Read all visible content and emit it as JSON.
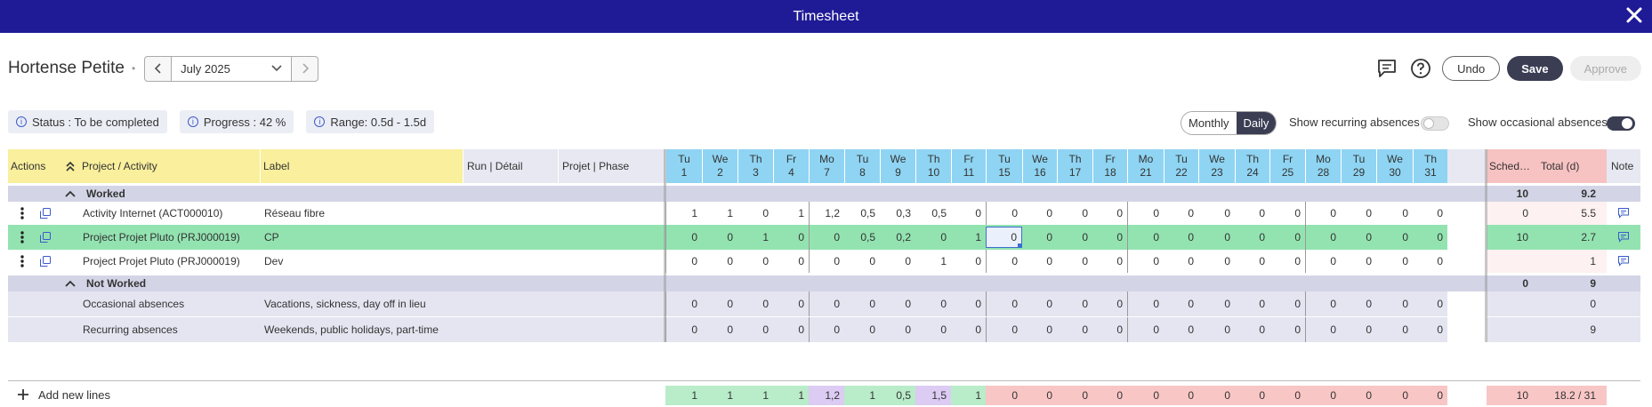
{
  "window": {
    "title": "Timesheet",
    "close_icon": "close-icon"
  },
  "header": {
    "person": "Hortense Petite",
    "month": "July 2025",
    "undo": "Undo",
    "save": "Save",
    "approve": "Approve"
  },
  "info": {
    "status": "Status : To be completed",
    "progress": "Progress : 42 %",
    "range": "Range: 0.5d - 1.5d"
  },
  "view": {
    "monthly": "Monthly",
    "daily": "Daily",
    "selected": "Daily",
    "recurring_label": "Show recurring absences",
    "recurring_on": false,
    "occasional_label": "Show occasional absences",
    "occasional_on": true
  },
  "columns": {
    "actions": "Actions",
    "project": "Project / Activity",
    "label": "Label",
    "run": "Run | Détail",
    "phase": "Projet | Phase",
    "scheduled": "Sched…",
    "total": "Total (d)",
    "note": "Note"
  },
  "days": [
    {
      "d": "Tu",
      "n": "1"
    },
    {
      "d": "We",
      "n": "2"
    },
    {
      "d": "Th",
      "n": "3"
    },
    {
      "d": "Fr",
      "n": "4"
    },
    {
      "d": "Mo",
      "n": "7"
    },
    {
      "d": "Tu",
      "n": "8"
    },
    {
      "d": "We",
      "n": "9"
    },
    {
      "d": "Th",
      "n": "10"
    },
    {
      "d": "Fr",
      "n": "11"
    },
    {
      "d": "Tu",
      "n": "15"
    },
    {
      "d": "We",
      "n": "16"
    },
    {
      "d": "Th",
      "n": "17"
    },
    {
      "d": "Fr",
      "n": "18"
    },
    {
      "d": "Mo",
      "n": "21"
    },
    {
      "d": "Tu",
      "n": "22"
    },
    {
      "d": "We",
      "n": "23"
    },
    {
      "d": "Th",
      "n": "24"
    },
    {
      "d": "Fr",
      "n": "25"
    },
    {
      "d": "Mo",
      "n": "28"
    },
    {
      "d": "Tu",
      "n": "29"
    },
    {
      "d": "We",
      "n": "30"
    },
    {
      "d": "Th",
      "n": "31"
    }
  ],
  "groups": [
    {
      "title": "Worked",
      "scheduled": "10",
      "total": "9.2",
      "rows": [
        {
          "project": "Activity Internet (ACT000010)",
          "label": "Réseau fibre",
          "values": [
            "1",
            "1",
            "0",
            "1",
            "1,2",
            "0,5",
            "0,3",
            "0,5",
            "0",
            "0",
            "0",
            "0",
            "0",
            "0",
            "0",
            "0",
            "0",
            "0",
            "0",
            "0",
            "0",
            "0"
          ],
          "scheduled": "0",
          "total": "5.5",
          "note": true,
          "highlight": false
        },
        {
          "project": "Project Projet Pluto (PRJ000019)",
          "label": "CP",
          "values": [
            "0",
            "0",
            "1",
            "0",
            "0",
            "0,5",
            "0,2",
            "0",
            "1",
            "0",
            "0",
            "0",
            "0",
            "0",
            "0",
            "0",
            "0",
            "0",
            "0",
            "0",
            "0",
            "0"
          ],
          "scheduled": "10",
          "total": "2.7",
          "note": true,
          "highlight": true
        },
        {
          "project": "Project Projet Pluto (PRJ000019)",
          "label": "Dev",
          "values": [
            "0",
            "0",
            "0",
            "0",
            "0",
            "0",
            "0",
            "1",
            "0",
            "0",
            "0",
            "0",
            "0",
            "0",
            "0",
            "0",
            "0",
            "0",
            "0",
            "0",
            "0",
            "0"
          ],
          "scheduled": "",
          "total": "1",
          "note": true,
          "highlight": false
        }
      ]
    },
    {
      "title": "Not Worked",
      "scheduled": "0",
      "total": "9",
      "rows": [
        {
          "project": "Occasional absences",
          "label": "Vacations, sickness, day off in lieu",
          "values": [
            "0",
            "0",
            "0",
            "0",
            "0",
            "0",
            "0",
            "0",
            "0",
            "0",
            "0",
            "0",
            "0",
            "0",
            "0",
            "0",
            "0",
            "0",
            "0",
            "0",
            "0",
            "0"
          ],
          "scheduled": "",
          "total": "0",
          "note": false,
          "highlight": false
        },
        {
          "project": "Recurring absences",
          "label": "Weekends, public holidays, part-time",
          "values": [
            "0",
            "0",
            "0",
            "0",
            "0",
            "0",
            "0",
            "0",
            "0",
            "0",
            "0",
            "0",
            "0",
            "0",
            "0",
            "0",
            "0",
            "0",
            "0",
            "0",
            "0",
            "0"
          ],
          "scheduled": "",
          "total": "9",
          "note": false,
          "highlight": false
        }
      ]
    }
  ],
  "footer": {
    "add_label": "Add new lines",
    "totals": [
      "1",
      "1",
      "1",
      "1",
      "1,2",
      "1",
      "0,5",
      "1,5",
      "1",
      "0",
      "0",
      "0",
      "0",
      "0",
      "0",
      "0",
      "0",
      "0",
      "0",
      "0",
      "0",
      "0"
    ],
    "total_status": [
      "ok",
      "ok",
      "ok",
      "ok",
      "over",
      "ok",
      "ok",
      "over",
      "ok",
      "under",
      "under",
      "under",
      "under",
      "under",
      "under",
      "under",
      "under",
      "under",
      "under",
      "under",
      "under",
      "under"
    ],
    "scheduled": "10",
    "total": "18.2 / 31"
  },
  "colors": {
    "titlebar": "#1f1b96",
    "accent": "#3b3d53",
    "day_header": "#8fd4f2",
    "project_header": "#f9ef9c",
    "group_row": "#d3d5e6",
    "highlight_row": "#93e3b1",
    "absence_row": "#e4e5f0",
    "total_ok": "#b9ecc9",
    "total_over": "#dccbf3",
    "total_under": "#f9c6c6",
    "sched_header": "#f7c2c2"
  }
}
